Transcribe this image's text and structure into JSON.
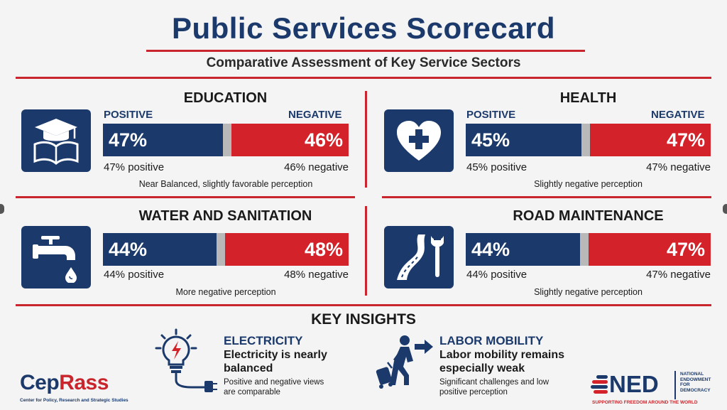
{
  "title": "Public Services Scorecard",
  "subtitle": "Comparative Assessment of Key Service Sectors",
  "labels": {
    "positive": "POSITIVE",
    "negative": "NEGATIVE"
  },
  "colors": {
    "navy": "#1b3a6b",
    "red": "#d4222a",
    "neutral": "#b9b9b9"
  },
  "chart_data": [
    {
      "type": "bar",
      "title": "EDUCATION",
      "icon": "graduation-book-icon",
      "series": [
        {
          "name": "POSITIVE",
          "values": [
            47
          ]
        },
        {
          "name": "NEGATIVE",
          "values": [
            46
          ]
        }
      ],
      "positive_value": 47,
      "negative_value": 46,
      "positive_label": "47%",
      "negative_label": "46%",
      "positive_caption": "47% positive",
      "negative_caption": "46% negative",
      "perception": "Near Balanced, slightly favorable perception"
    },
    {
      "type": "bar",
      "title": "HEALTH",
      "icon": "heart-cross-icon",
      "series": [
        {
          "name": "POSITIVE",
          "values": [
            45
          ]
        },
        {
          "name": "NEGATIVE",
          "values": [
            47
          ]
        }
      ],
      "positive_value": 45,
      "negative_value": 47,
      "positive_label": "45%",
      "negative_label": "47%",
      "positive_caption": "45% positive",
      "negative_caption": "47% negative",
      "perception": "Slightly negative perception"
    },
    {
      "type": "bar",
      "title": "WATER AND SANITATION",
      "icon": "water-tap-icon",
      "series": [
        {
          "name": "POSITIVE",
          "values": [
            44
          ]
        },
        {
          "name": "NEGATIVE",
          "values": [
            48
          ]
        }
      ],
      "positive_value": 44,
      "negative_value": 48,
      "positive_label": "44%",
      "negative_label": "48%",
      "positive_caption": "44% positive",
      "negative_caption": "48% negative",
      "perception": "More negative perception"
    },
    {
      "type": "bar",
      "title": "ROAD MAINTENANCE",
      "icon": "road-wrench-icon",
      "series": [
        {
          "name": "POSITIVE",
          "values": [
            44
          ]
        },
        {
          "name": "NEGATIVE",
          "values": [
            47
          ]
        }
      ],
      "positive_value": 44,
      "negative_value": 47,
      "positive_label": "44%",
      "negative_label": "47%",
      "positive_caption": "44% positive",
      "negative_caption": "47% negative",
      "perception": "Slightly negative perception"
    }
  ],
  "insights": {
    "title": "KEY INSIGHTS",
    "items": [
      {
        "icon": "lightbulb-plug-icon",
        "heading": "ELECTRICITY",
        "main_line1": "Electricity is nearly",
        "main_line2": "balanced",
        "detail_line1": "Positive and negative views",
        "detail_line2": "are comparable"
      },
      {
        "icon": "traveler-arrow-icon",
        "heading": "LABOR MOBILITY",
        "main_line1": "Labor mobility remains",
        "main_line2": "especially weak",
        "detail_line1": "Significant challenges and low",
        "detail_line2": "positive perception"
      }
    ]
  },
  "logos": {
    "ceprass_part1": "Cep",
    "ceprass_part2": "Rass",
    "ceprass_sub": "Center for Policy, Research and Strategic Studies",
    "ned": "NED",
    "ned_full1": "NATIONAL",
    "ned_full2": "ENDOWMENT",
    "ned_full3": "FOR",
    "ned_full4": "DEMOCRACY",
    "ned_tag": "SUPPORTING FREEDOM AROUND THE WORLD"
  }
}
